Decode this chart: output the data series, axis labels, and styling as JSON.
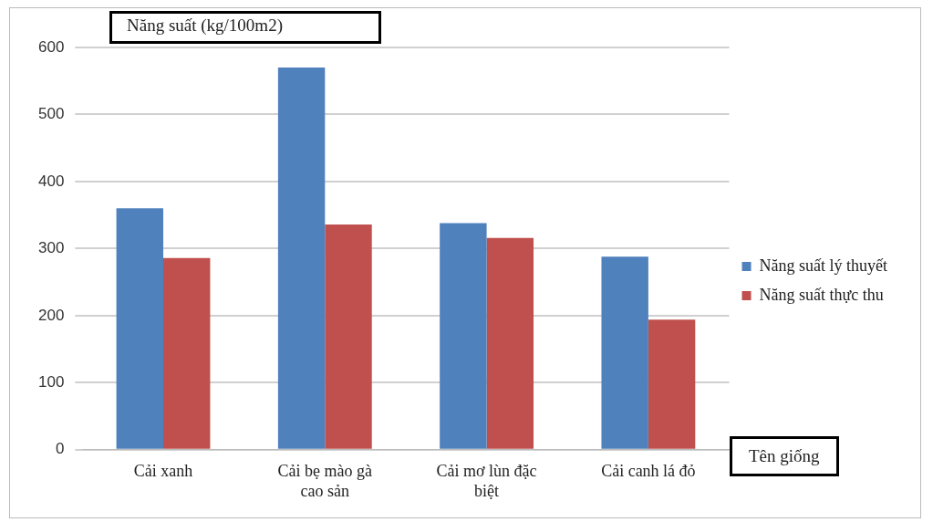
{
  "chart_data": {
    "type": "bar",
    "ylabel": "Năng suất (kg/100m2)",
    "xlabel": "Tên giống",
    "categories": [
      "Cải xanh",
      "Cải bẹ mào gà cao sản",
      "Cải mơ lùn đặc biệt",
      "Cải canh lá đỏ"
    ],
    "series": [
      {
        "name": "Năng suất lý thuyết",
        "color": "#4f81bd",
        "values": [
          360,
          570,
          338,
          288
        ]
      },
      {
        "name": "Năng suất thực thu",
        "color": "#c0504d",
        "values": [
          286,
          336,
          316,
          194
        ]
      }
    ],
    "ylim": [
      0,
      600
    ],
    "yticks": [
      0,
      100,
      200,
      300,
      400,
      500,
      600
    ],
    "grid": "y",
    "legend": "right"
  }
}
